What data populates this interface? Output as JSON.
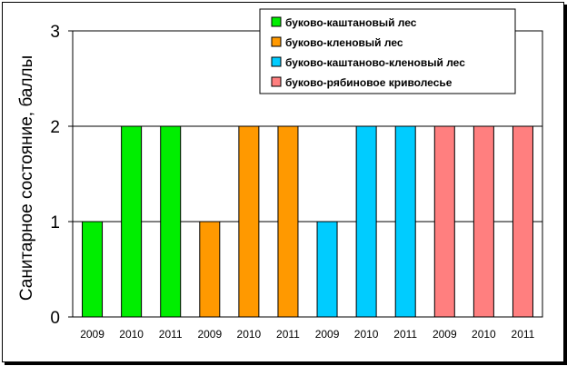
{
  "chart_data": {
    "type": "bar",
    "ylabel": "Санитарное состояние, баллы",
    "xlabel": "",
    "ylim": [
      0,
      3
    ],
    "yticks": [
      "0",
      "1",
      "2",
      "3"
    ],
    "grid": true,
    "legend_position": "top-right",
    "series": [
      {
        "name": "буково-каштановый лес",
        "color": "#00ee00",
        "categories": [
          "2009",
          "2010",
          "2011"
        ],
        "values": [
          1,
          2,
          2
        ]
      },
      {
        "name": "буково-кленовый лес",
        "color": "#ff9900",
        "categories": [
          "2009",
          "2010",
          "2011"
        ],
        "values": [
          1,
          2,
          2
        ]
      },
      {
        "name": "буково-каштаново-кленовый лес",
        "color": "#00ccff",
        "categories": [
          "2009",
          "2010",
          "2011"
        ],
        "values": [
          1,
          2,
          2
        ]
      },
      {
        "name": "буково-рябиновое криволесье",
        "color": "#ff7f7f",
        "categories": [
          "2009",
          "2010",
          "2011"
        ],
        "values": [
          2,
          2,
          2
        ]
      }
    ]
  }
}
